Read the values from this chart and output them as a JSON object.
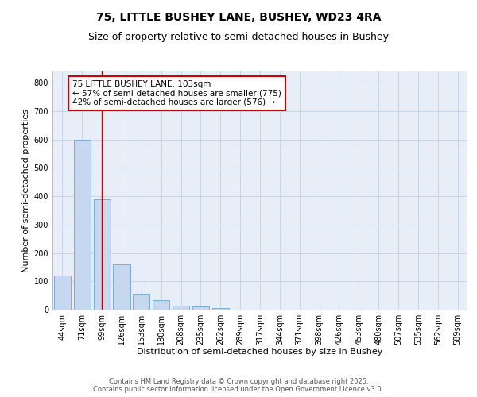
{
  "title_line1": "75, LITTLE BUSHEY LANE, BUSHEY, WD23 4RA",
  "title_line2": "Size of property relative to semi-detached houses in Bushey",
  "xlabel": "Distribution of semi-detached houses by size in Bushey",
  "ylabel": "Number of semi-detached properties",
  "categories": [
    "44sqm",
    "71sqm",
    "99sqm",
    "126sqm",
    "153sqm",
    "180sqm",
    "208sqm",
    "235sqm",
    "262sqm",
    "289sqm",
    "317sqm",
    "344sqm",
    "371sqm",
    "398sqm",
    "426sqm",
    "453sqm",
    "480sqm",
    "507sqm",
    "535sqm",
    "562sqm",
    "589sqm"
  ],
  "values": [
    120,
    600,
    390,
    160,
    55,
    35,
    15,
    10,
    5,
    0,
    0,
    0,
    0,
    0,
    0,
    0,
    0,
    0,
    0,
    0,
    0
  ],
  "bar_color": "#c5d8f0",
  "bar_edge_color": "#7aaed4",
  "red_line_index": 2,
  "annotation_line1": "75 LITTLE BUSHEY LANE: 103sqm",
  "annotation_line2": "← 57% of semi-detached houses are smaller (775)",
  "annotation_line3": "42% of semi-detached houses are larger (576) →",
  "annotation_box_color": "#ffffff",
  "annotation_box_edge_color": "#cc0000",
  "ylim": [
    0,
    840
  ],
  "yticks": [
    0,
    100,
    200,
    300,
    400,
    500,
    600,
    700,
    800
  ],
  "grid_color": "#c8d4e8",
  "background_color": "#e8eef8",
  "footer_line1": "Contains HM Land Registry data © Crown copyright and database right 2025.",
  "footer_line2": "Contains public sector information licensed under the Open Government Licence v3.0.",
  "title_fontsize": 10,
  "subtitle_fontsize": 9,
  "axis_label_fontsize": 8,
  "tick_fontsize": 7,
  "annotation_fontsize": 7.5,
  "footer_fontsize": 6
}
